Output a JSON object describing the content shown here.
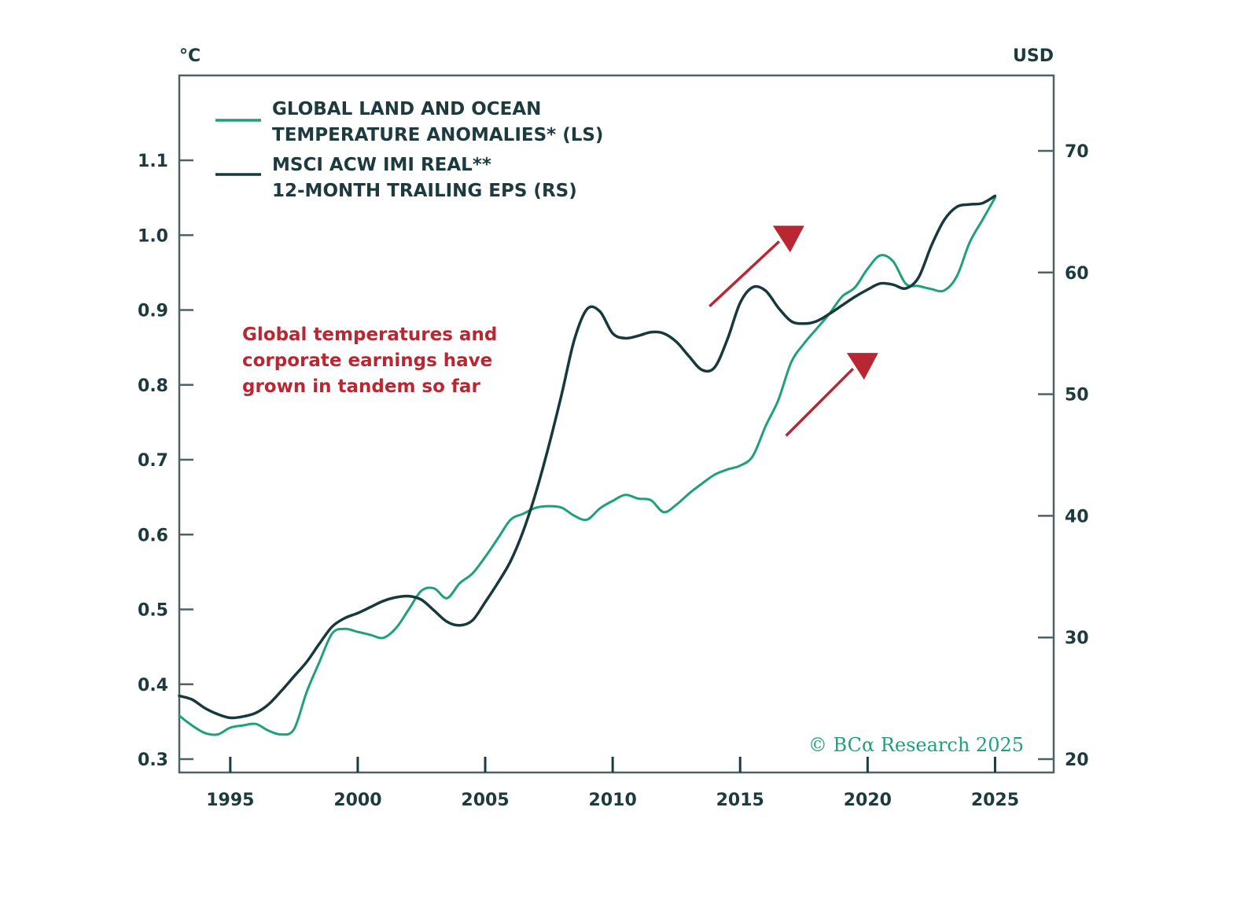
{
  "chart_data": {
    "type": "line",
    "title": "",
    "left_axis": {
      "label": "°C",
      "ticks": [
        0.3,
        0.4,
        0.5,
        0.6,
        0.7,
        0.8,
        0.9,
        1.0,
        1.1
      ],
      "tick_labels": [
        "0.3",
        "0.4",
        "0.5",
        "0.6",
        "0.7",
        "0.8",
        "0.9",
        "1.0",
        "1.1"
      ],
      "range": [
        0.3,
        1.15
      ]
    },
    "right_axis": {
      "label": "USD",
      "ticks": [
        20,
        30,
        40,
        50,
        60,
        70
      ],
      "tick_labels": [
        "20",
        "30",
        "40",
        "50",
        "60",
        "70"
      ],
      "range": [
        20,
        75
      ]
    },
    "x_axis": {
      "ticks": [
        1995,
        2000,
        2005,
        2010,
        2015,
        2020,
        2025
      ],
      "tick_labels": [
        "1995",
        "2000",
        "2005",
        "2010",
        "2015",
        "2020",
        "2025"
      ],
      "range": [
        1993.0,
        2027.3
      ]
    },
    "grid": false,
    "legend_position": "top-left",
    "series": [
      {
        "name": "GLOBAL LAND AND OCEAN TEMPERATURE ANOMALIES* (LS)",
        "legend_lines": [
          "GLOBAL LAND AND OCEAN",
          "TEMPERATURE ANOMALIES* (LS)"
        ],
        "axis": "left",
        "color": "#1da17b",
        "x": [
          1993.0,
          1993.5,
          1994.0,
          1994.5,
          1995.0,
          1995.5,
          1996.0,
          1996.5,
          1997.0,
          1997.5,
          1998.0,
          1998.5,
          1999.0,
          1999.5,
          2000.0,
          2000.5,
          2001.0,
          2001.5,
          2002.0,
          2002.5,
          2003.0,
          2003.5,
          2004.0,
          2004.5,
          2005.0,
          2005.5,
          2006.0,
          2006.5,
          2007.0,
          2007.5,
          2008.0,
          2008.5,
          2009.0,
          2009.5,
          2010.0,
          2010.5,
          2011.0,
          2011.5,
          2012.0,
          2012.5,
          2013.0,
          2013.5,
          2014.0,
          2014.5,
          2015.0,
          2015.5,
          2016.0,
          2016.5,
          2017.0,
          2017.5,
          2018.0,
          2018.5,
          2019.0,
          2019.5,
          2020.0,
          2020.5,
          2021.0,
          2021.5,
          2022.0,
          2022.5,
          2023.0,
          2023.5,
          2024.0,
          2024.5,
          2025.0
        ],
        "values": [
          0.358,
          0.345,
          0.335,
          0.333,
          0.342,
          0.345,
          0.347,
          0.338,
          0.333,
          0.34,
          0.39,
          0.43,
          0.468,
          0.474,
          0.47,
          0.466,
          0.462,
          0.475,
          0.5,
          0.525,
          0.528,
          0.515,
          0.535,
          0.548,
          0.57,
          0.595,
          0.62,
          0.628,
          0.636,
          0.638,
          0.636,
          0.625,
          0.62,
          0.635,
          0.645,
          0.653,
          0.648,
          0.646,
          0.63,
          0.64,
          0.655,
          0.668,
          0.68,
          0.687,
          0.692,
          0.705,
          0.745,
          0.78,
          0.83,
          0.855,
          0.875,
          0.895,
          0.918,
          0.93,
          0.955,
          0.973,
          0.965,
          0.935,
          0.932,
          0.928,
          0.926,
          0.945,
          0.99,
          1.02,
          1.05
        ]
      },
      {
        "name": "MSCI ACW IMI REAL** 12-MONTH TRAILING EPS (RS)",
        "legend_lines": [
          "MSCI ACW IMI REAL**",
          "12-MONTH TRAILING EPS (RS)"
        ],
        "axis": "right",
        "color": "#17393d",
        "x": [
          1993.0,
          1993.5,
          1994.0,
          1994.5,
          1995.0,
          1995.5,
          1996.0,
          1996.5,
          1997.0,
          1997.5,
          1998.0,
          1998.5,
          1999.0,
          1999.5,
          2000.0,
          2000.5,
          2001.0,
          2001.5,
          2002.0,
          2002.5,
          2003.0,
          2003.5,
          2004.0,
          2004.5,
          2005.0,
          2005.5,
          2006.0,
          2006.5,
          2007.0,
          2007.5,
          2008.0,
          2008.5,
          2009.0,
          2009.5,
          2010.0,
          2010.5,
          2011.0,
          2011.5,
          2012.0,
          2012.5,
          2013.0,
          2013.5,
          2014.0,
          2014.5,
          2015.0,
          2015.5,
          2016.0,
          2016.5,
          2017.0,
          2017.5,
          2018.0,
          2018.5,
          2019.0,
          2019.5,
          2020.0,
          2020.5,
          2021.0,
          2021.5,
          2022.0,
          2022.5,
          2023.0,
          2023.5,
          2024.0,
          2024.5,
          2025.0
        ],
        "values": [
          25.2,
          24.9,
          24.2,
          23.7,
          23.4,
          23.5,
          23.8,
          24.5,
          25.6,
          26.8,
          28.0,
          29.5,
          30.9,
          31.6,
          32.0,
          32.5,
          33.0,
          33.3,
          33.4,
          33.1,
          32.2,
          31.3,
          31.0,
          31.4,
          32.9,
          34.5,
          36.3,
          38.8,
          42.0,
          45.8,
          50.0,
          54.5,
          57.0,
          56.8,
          55.0,
          54.6,
          54.8,
          55.1,
          55.0,
          54.3,
          53.1,
          52.0,
          52.2,
          54.5,
          57.5,
          58.8,
          58.5,
          57.1,
          56.0,
          55.8,
          56.0,
          56.6,
          57.3,
          58.0,
          58.6,
          59.1,
          59.0,
          58.7,
          59.6,
          62.2,
          64.3,
          65.4,
          65.6,
          65.7,
          66.3
        ]
      }
    ],
    "annotations": [
      {
        "text_lines": [
          "Global temperatures and",
          "corporate earnings have",
          "grown in tandem so far"
        ],
        "color": "#b82732"
      }
    ],
    "arrows": [
      {
        "from": [
          2013.8,
          0.905
        ],
        "to": [
          2016.9,
          1.0
        ],
        "axis": "left",
        "color": "#b82732"
      },
      {
        "from": [
          2016.8,
          0.732
        ],
        "to": [
          2019.8,
          0.83
        ],
        "axis": "left",
        "color": "#b82732"
      }
    ],
    "copyright": "© BCα Research 2025"
  }
}
